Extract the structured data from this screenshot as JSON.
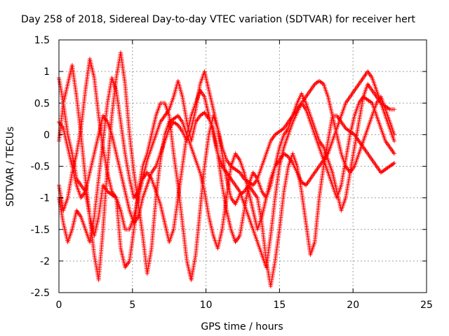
{
  "chart_data": {
    "type": "scatter",
    "title": "Day 258 of 2018, Sidereal Day-to-day VTEC variation (SDTVAR) for receiver hert",
    "xlabel": "GPS time / hours",
    "ylabel": "SDTVAR / TECUs",
    "xlim": [
      0,
      25
    ],
    "ylim": [
      -2.5,
      1.5
    ],
    "xticks": [
      0,
      5,
      10,
      15,
      20,
      25
    ],
    "yticks": [
      -2.5,
      -2,
      -1.5,
      -1,
      -0.5,
      0,
      0.5,
      1,
      1.5
    ],
    "grid": true,
    "marker": "+",
    "color": "#ff0000",
    "series": [
      {
        "x": [
          0.0,
          0.3,
          0.6,
          0.9,
          1.2,
          1.5,
          1.8,
          2.1,
          2.4,
          2.7,
          3.0,
          3.3,
          3.6,
          3.9,
          4.2,
          4.5,
          4.8,
          5.1,
          5.4,
          5.7,
          6.0,
          6.3,
          6.6,
          6.9,
          7.2,
          7.5,
          7.8,
          8.1,
          8.4,
          8.7,
          9.0,
          9.3,
          9.6,
          9.9,
          10.2,
          10.5,
          10.8,
          11.1,
          11.4,
          11.7,
          12.0,
          12.3,
          12.6,
          12.9,
          13.2,
          13.5,
          13.8,
          14.1,
          14.4,
          14.7,
          15.0,
          15.3,
          15.6,
          15.9,
          16.2,
          16.5,
          16.8,
          17.1,
          17.4,
          17.7,
          18.0,
          18.3,
          18.6,
          18.9,
          19.2,
          19.5,
          19.8,
          20.1,
          20.4,
          20.7,
          21.0,
          21.3,
          21.6,
          21.9,
          22.2,
          22.5,
          22.8
        ],
        "y": [
          0.9,
          0.5,
          0.0,
          -0.3,
          -0.7,
          -0.8,
          -0.9,
          -1.3,
          -1.6,
          -1.3,
          -0.8,
          -0.9,
          -0.95,
          -1.0,
          -1.8,
          -2.1,
          -2.0,
          -1.5,
          -0.9,
          -0.5,
          -0.3,
          0.0,
          0.3,
          0.5,
          0.5,
          0.3,
          -0.3,
          -0.8,
          -1.4,
          -2.0,
          -2.3,
          -1.9,
          -1.2,
          -0.5,
          0.0,
          0.3,
          0.1,
          -0.3,
          -0.7,
          -1.0,
          -1.1,
          -0.95,
          -0.9,
          -0.8,
          -0.9,
          -1.0,
          -1.4,
          -2.0,
          -2.4,
          -2.0,
          -1.5,
          -0.9,
          -0.5,
          -0.3,
          -0.5,
          -0.9,
          -1.4,
          -1.9,
          -1.7,
          -1.0,
          -0.5,
          -0.1,
          0.3,
          0.3,
          0.2,
          0.1,
          0.05,
          0.0,
          -0.1,
          -0.2,
          -0.3,
          -0.4,
          -0.5,
          -0.6,
          -0.55,
          -0.5,
          -0.45
        ]
      },
      {
        "x": [
          0.0,
          0.3,
          0.6,
          0.9,
          1.2,
          1.5,
          1.8,
          2.1,
          2.4,
          2.7,
          3.0,
          3.3,
          3.6,
          3.9,
          4.2,
          4.5,
          4.8,
          5.1,
          5.4,
          5.7,
          6.0,
          6.3,
          6.6,
          6.9,
          7.2,
          7.5,
          7.8,
          8.1,
          8.4,
          8.7,
          9.0,
          9.3,
          9.6,
          9.9,
          10.2,
          10.5,
          10.8,
          11.1,
          11.4,
          11.7,
          12.0,
          12.3,
          12.6,
          12.9,
          13.2,
          13.5,
          13.8,
          14.1,
          14.4,
          14.7,
          15.0,
          15.3,
          15.6,
          15.9,
          16.2,
          16.5,
          16.8,
          17.1,
          17.4,
          17.7,
          18.0,
          18.3,
          18.6,
          18.9,
          19.2,
          19.5,
          19.8,
          20.1,
          20.4,
          20.7,
          21.0,
          21.3,
          21.6,
          21.9,
          22.2,
          22.5,
          22.8
        ],
        "y": [
          -0.8,
          -1.2,
          -1.0,
          -0.6,
          -0.3,
          0.1,
          0.7,
          1.2,
          0.9,
          0.3,
          -0.2,
          -0.6,
          -0.9,
          -1.0,
          -1.2,
          -1.5,
          -1.5,
          -1.3,
          -1.0,
          -0.7,
          -0.4,
          -0.2,
          0.0,
          0.2,
          0.3,
          0.4,
          0.6,
          0.85,
          0.6,
          0.2,
          -0.1,
          0.2,
          0.3,
          0.35,
          0.25,
          0.1,
          -0.3,
          -0.8,
          -1.2,
          -1.5,
          -1.7,
          -1.6,
          -1.2,
          -0.8,
          -0.6,
          -0.7,
          -0.9,
          -1.0,
          -0.8,
          -0.5,
          -0.2,
          0.0,
          0.1,
          0.3,
          0.5,
          0.65,
          0.5,
          0.3,
          0.1,
          -0.1,
          -0.2,
          -0.4,
          -0.6,
          -0.9,
          -1.2,
          -1.0,
          -0.6,
          -0.2,
          0.2,
          0.6,
          0.8,
          0.7,
          0.6,
          0.5,
          0.45,
          0.4,
          0.4
        ]
      },
      {
        "x": [
          0.0,
          0.3,
          0.6,
          0.9,
          1.2,
          1.5,
          1.8,
          2.1,
          2.4,
          2.7,
          3.0,
          3.3,
          3.6,
          3.9,
          4.2,
          4.5,
          4.8,
          5.1,
          5.4,
          5.7,
          6.0,
          6.3,
          6.6,
          6.9,
          7.2,
          7.5,
          7.8,
          8.1,
          8.4,
          8.7,
          9.0,
          9.3,
          9.6,
          9.9,
          10.2,
          10.5,
          10.8,
          11.1,
          11.4,
          11.7,
          12.0,
          12.3,
          12.6,
          12.9,
          13.2,
          13.5,
          13.8,
          14.1,
          14.4,
          14.7,
          15.0,
          15.3,
          15.6,
          15.9,
          16.2,
          16.5,
          16.8,
          17.1,
          17.4,
          17.7,
          18.0,
          18.3,
          18.6,
          18.9,
          19.2,
          19.5,
          19.8,
          20.1,
          20.4,
          20.7,
          21.0,
          21.3,
          21.6,
          21.9,
          22.2,
          22.5,
          22.8
        ],
        "y": [
          0.2,
          0.1,
          -0.2,
          -0.5,
          -0.8,
          -1.0,
          -0.9,
          -0.6,
          -0.3,
          0.0,
          0.3,
          0.2,
          0.0,
          -0.3,
          -0.6,
          -0.9,
          -1.2,
          -1.4,
          -1.3,
          -1.0,
          -0.8,
          -0.6,
          -0.5,
          -0.3,
          -0.1,
          0.1,
          0.2,
          0.15,
          0.05,
          -0.1,
          0.1,
          0.4,
          0.8,
          1.0,
          0.7,
          0.4,
          0.1,
          -0.2,
          -0.4,
          -0.5,
          -0.55,
          -0.6,
          -0.7,
          -0.75,
          -0.8,
          -0.7,
          -0.5,
          -0.3,
          -0.1,
          0.0,
          0.05,
          0.1,
          0.2,
          0.3,
          0.4,
          0.5,
          0.6,
          0.7,
          0.8,
          0.85,
          0.8,
          0.6,
          0.3,
          0.0,
          -0.3,
          -0.5,
          -0.6,
          -0.5,
          -0.3,
          -0.1,
          0.1,
          0.3,
          0.5,
          0.6,
          0.4,
          0.2,
          0.0
        ]
      },
      {
        "x": [
          0.0,
          0.3,
          0.6,
          0.9,
          1.2,
          1.5,
          1.8,
          2.1,
          2.4,
          2.7,
          3.0,
          3.3,
          3.6,
          3.9,
          4.2,
          4.5,
          4.8,
          5.1,
          5.4,
          5.7,
          6.0,
          6.3,
          6.6,
          6.9,
          7.2,
          7.5,
          7.8,
          8.1,
          8.4,
          8.7,
          9.0,
          9.3,
          9.6,
          9.9,
          10.2,
          10.5,
          10.8,
          11.1,
          11.4,
          11.7,
          12.0,
          12.3,
          12.6,
          12.9,
          13.2,
          13.5,
          13.8,
          14.1,
          14.4,
          14.7,
          15.0,
          15.3,
          15.6,
          15.9,
          16.2,
          16.5,
          16.8,
          17.1,
          17.4,
          17.7,
          18.0,
          18.3,
          18.6,
          18.9,
          19.2,
          19.5,
          19.8,
          20.1,
          20.4,
          20.7,
          21.0,
          21.3,
          21.6,
          21.9,
          22.2,
          22.5,
          22.8
        ],
        "y": [
          -0.1,
          0.5,
          0.8,
          1.1,
          0.6,
          0.0,
          -0.7,
          -1.3,
          -1.9,
          -2.3,
          -1.5,
          -0.5,
          0.3,
          0.9,
          1.3,
          0.8,
          0.0,
          -0.6,
          -1.1,
          -1.6,
          -2.2,
          -1.8,
          -1.0,
          -0.4,
          0.0,
          0.2,
          0.25,
          0.3,
          0.2,
          0.0,
          -0.2,
          -0.4,
          -0.6,
          -0.9,
          -1.3,
          -1.6,
          -1.8,
          -1.5,
          -1.0,
          -0.5,
          -0.3,
          -0.4,
          -0.6,
          -0.9,
          -1.2,
          -1.5,
          -1.3,
          -1.0,
          -0.7,
          -0.5,
          -0.4,
          -0.3,
          -0.35,
          -0.45,
          -0.6,
          -0.75,
          -0.8,
          -0.7,
          -0.6,
          -0.5,
          -0.4,
          -0.3,
          -0.1,
          0.1,
          0.3,
          0.5,
          0.6,
          0.7,
          0.8,
          0.9,
          1.0,
          0.9,
          0.7,
          0.5,
          0.3,
          0.1,
          -0.1
        ]
      },
      {
        "x": [
          0.0,
          0.3,
          0.6,
          0.9,
          1.2,
          1.5,
          1.8,
          2.1,
          2.4,
          2.7,
          3.0,
          3.3,
          3.6,
          3.9,
          4.2,
          4.5,
          4.8,
          5.1,
          5.4,
          5.7,
          6.0,
          6.3,
          6.6,
          6.9,
          7.2,
          7.5,
          7.8,
          8.1,
          8.4,
          8.7,
          9.0,
          9.3,
          9.6,
          9.9,
          10.2,
          10.5,
          10.8,
          11.1,
          11.4,
          11.7,
          12.0,
          12.3,
          12.6,
          12.9,
          13.2,
          13.5,
          13.8,
          14.1,
          14.4,
          14.7,
          15.0,
          15.3,
          15.6,
          15.9,
          16.2,
          16.5,
          16.8,
          17.1,
          17.4,
          17.7,
          18.0,
          18.3,
          18.6,
          18.9,
          19.2,
          19.5,
          19.8,
          20.1,
          20.4,
          20.7,
          21.0,
          21.3,
          21.6,
          21.9,
          22.2,
          22.5,
          22.8
        ],
        "y": [
          -1.0,
          -1.4,
          -1.7,
          -1.5,
          -1.2,
          -1.3,
          -1.5,
          -1.7,
          -1.3,
          -0.7,
          -0.1,
          0.5,
          0.9,
          0.7,
          0.2,
          -0.3,
          -0.7,
          -1.0,
          -0.9,
          -0.7,
          -0.6,
          -0.7,
          -0.9,
          -1.1,
          -1.4,
          -1.7,
          -1.5,
          -1.0,
          -0.5,
          0.0,
          0.3,
          0.5,
          0.7,
          0.6,
          0.3,
          0.0,
          -0.3,
          -0.5,
          -0.6,
          -0.7,
          -0.8,
          -0.9,
          -1.1,
          -1.3,
          -1.5,
          -1.7,
          -1.9,
          -2.1,
          -1.6,
          -1.0,
          -0.5,
          -0.2,
          0.0,
          0.2,
          0.35,
          0.5,
          0.4,
          0.2,
          0.0,
          -0.2,
          -0.4,
          -0.6,
          -0.8,
          -1.0,
          -0.8,
          -0.4,
          0.0,
          0.3,
          0.5,
          0.6,
          0.55,
          0.5,
          0.3,
          0.1,
          -0.1,
          -0.2,
          -0.3
        ]
      }
    ]
  }
}
